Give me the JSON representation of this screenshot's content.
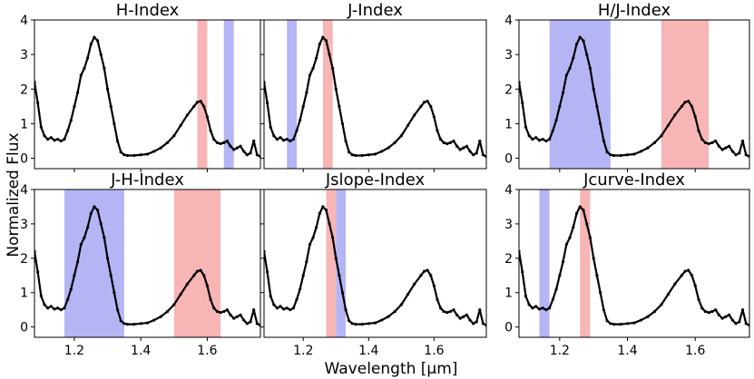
{
  "figure": {
    "xlabel": "Wavelength [μm]",
    "ylabel": "Normalized Flux"
  },
  "colors": {
    "red_band": "#f7a8a8",
    "blue_band": "#a8a8f5",
    "spectrum": "#000000"
  },
  "chart_data": [
    {
      "type": "line",
      "title": "H-Index",
      "xlim": [
        1.08,
        1.76
      ],
      "ylim": [
        -0.3,
        4.0
      ],
      "xticks": [
        1.2,
        1.4,
        1.6
      ],
      "yticks": [
        0,
        1,
        2,
        3,
        4
      ],
      "show_xticklabels": false,
      "show_yticklabels": true,
      "bands": [
        {
          "color": "red",
          "x0": 1.57,
          "x1": 1.6
        },
        {
          "color": "blue",
          "x0": 1.65,
          "x1": 1.68
        }
      ]
    },
    {
      "type": "line",
      "title": "J-Index",
      "xlim": [
        1.08,
        1.76
      ],
      "ylim": [
        -0.3,
        4.0
      ],
      "xticks": [
        1.2,
        1.4,
        1.6
      ],
      "yticks": [
        0,
        1,
        2,
        3,
        4
      ],
      "show_xticklabels": false,
      "show_yticklabels": false,
      "bands": [
        {
          "color": "blue",
          "x0": 1.15,
          "x1": 1.18
        },
        {
          "color": "red",
          "x0": 1.26,
          "x1": 1.29
        }
      ]
    },
    {
      "type": "line",
      "title": "H/J-Index",
      "xlim": [
        1.08,
        1.76
      ],
      "ylim": [
        -0.3,
        4.0
      ],
      "xticks": [
        1.2,
        1.4,
        1.6
      ],
      "yticks": [
        0,
        1,
        2,
        3,
        4
      ],
      "show_xticklabels": false,
      "show_yticklabels": true,
      "bands": [
        {
          "color": "blue",
          "x0": 1.17,
          "x1": 1.35
        },
        {
          "color": "red",
          "x0": 1.5,
          "x1": 1.64
        }
      ]
    },
    {
      "type": "line",
      "title": "J-H-Index",
      "xlim": [
        1.08,
        1.76
      ],
      "ylim": [
        -0.3,
        4.0
      ],
      "xticks": [
        1.2,
        1.4,
        1.6
      ],
      "yticks": [
        0,
        1,
        2,
        3,
        4
      ],
      "show_xticklabels": true,
      "show_yticklabels": true,
      "bands": [
        {
          "color": "blue",
          "x0": 1.17,
          "x1": 1.35
        },
        {
          "color": "red",
          "x0": 1.5,
          "x1": 1.64
        }
      ]
    },
    {
      "type": "line",
      "title": "Jslope-Index",
      "xlim": [
        1.08,
        1.76
      ],
      "ylim": [
        -0.3,
        4.0
      ],
      "xticks": [
        1.2,
        1.4,
        1.6
      ],
      "yticks": [
        0,
        1,
        2,
        3,
        4
      ],
      "show_xticklabels": true,
      "show_yticklabels": false,
      "bands": [
        {
          "color": "red",
          "x0": 1.27,
          "x1": 1.3
        },
        {
          "color": "blue",
          "x0": 1.3,
          "x1": 1.33
        }
      ]
    },
    {
      "type": "line",
      "title": "Jcurve-Index",
      "xlim": [
        1.08,
        1.76
      ],
      "ylim": [
        -0.3,
        4.0
      ],
      "xticks": [
        1.2,
        1.4,
        1.6
      ],
      "yticks": [
        0,
        1,
        2,
        3,
        4
      ],
      "show_xticklabels": true,
      "show_yticklabels": true,
      "bands": [
        {
          "color": "blue",
          "x0": 1.14,
          "x1": 1.17
        },
        {
          "color": "red",
          "x0": 1.26,
          "x1": 1.29
        }
      ]
    }
  ],
  "spectrum": {
    "x": [
      1.08,
      1.09,
      1.1,
      1.11,
      1.12,
      1.13,
      1.14,
      1.15,
      1.16,
      1.17,
      1.18,
      1.19,
      1.2,
      1.21,
      1.22,
      1.23,
      1.24,
      1.25,
      1.26,
      1.27,
      1.28,
      1.29,
      1.3,
      1.31,
      1.32,
      1.33,
      1.34,
      1.35,
      1.36,
      1.38,
      1.4,
      1.42,
      1.44,
      1.46,
      1.48,
      1.5,
      1.52,
      1.54,
      1.56,
      1.57,
      1.58,
      1.59,
      1.6,
      1.61,
      1.62,
      1.63,
      1.64,
      1.65,
      1.66,
      1.67,
      1.68,
      1.69,
      1.7,
      1.71,
      1.72,
      1.73,
      1.74,
      1.75,
      1.76
    ],
    "y": [
      2.2,
      1.6,
      0.9,
      0.65,
      0.55,
      0.6,
      0.52,
      0.55,
      0.5,
      0.55,
      0.8,
      1.1,
      1.5,
      1.9,
      2.4,
      2.6,
      2.9,
      3.3,
      3.5,
      3.4,
      3.0,
      2.6,
      2.0,
      1.5,
      1.0,
      0.5,
      0.18,
      0.1,
      0.08,
      0.08,
      0.1,
      0.12,
      0.2,
      0.3,
      0.45,
      0.65,
      0.95,
      1.25,
      1.5,
      1.62,
      1.65,
      1.5,
      1.2,
      0.8,
      0.55,
      0.45,
      0.42,
      0.45,
      0.5,
      0.35,
      0.25,
      0.3,
      0.35,
      0.2,
      0.1,
      0.15,
      0.5,
      0.1,
      0.05
    ]
  }
}
